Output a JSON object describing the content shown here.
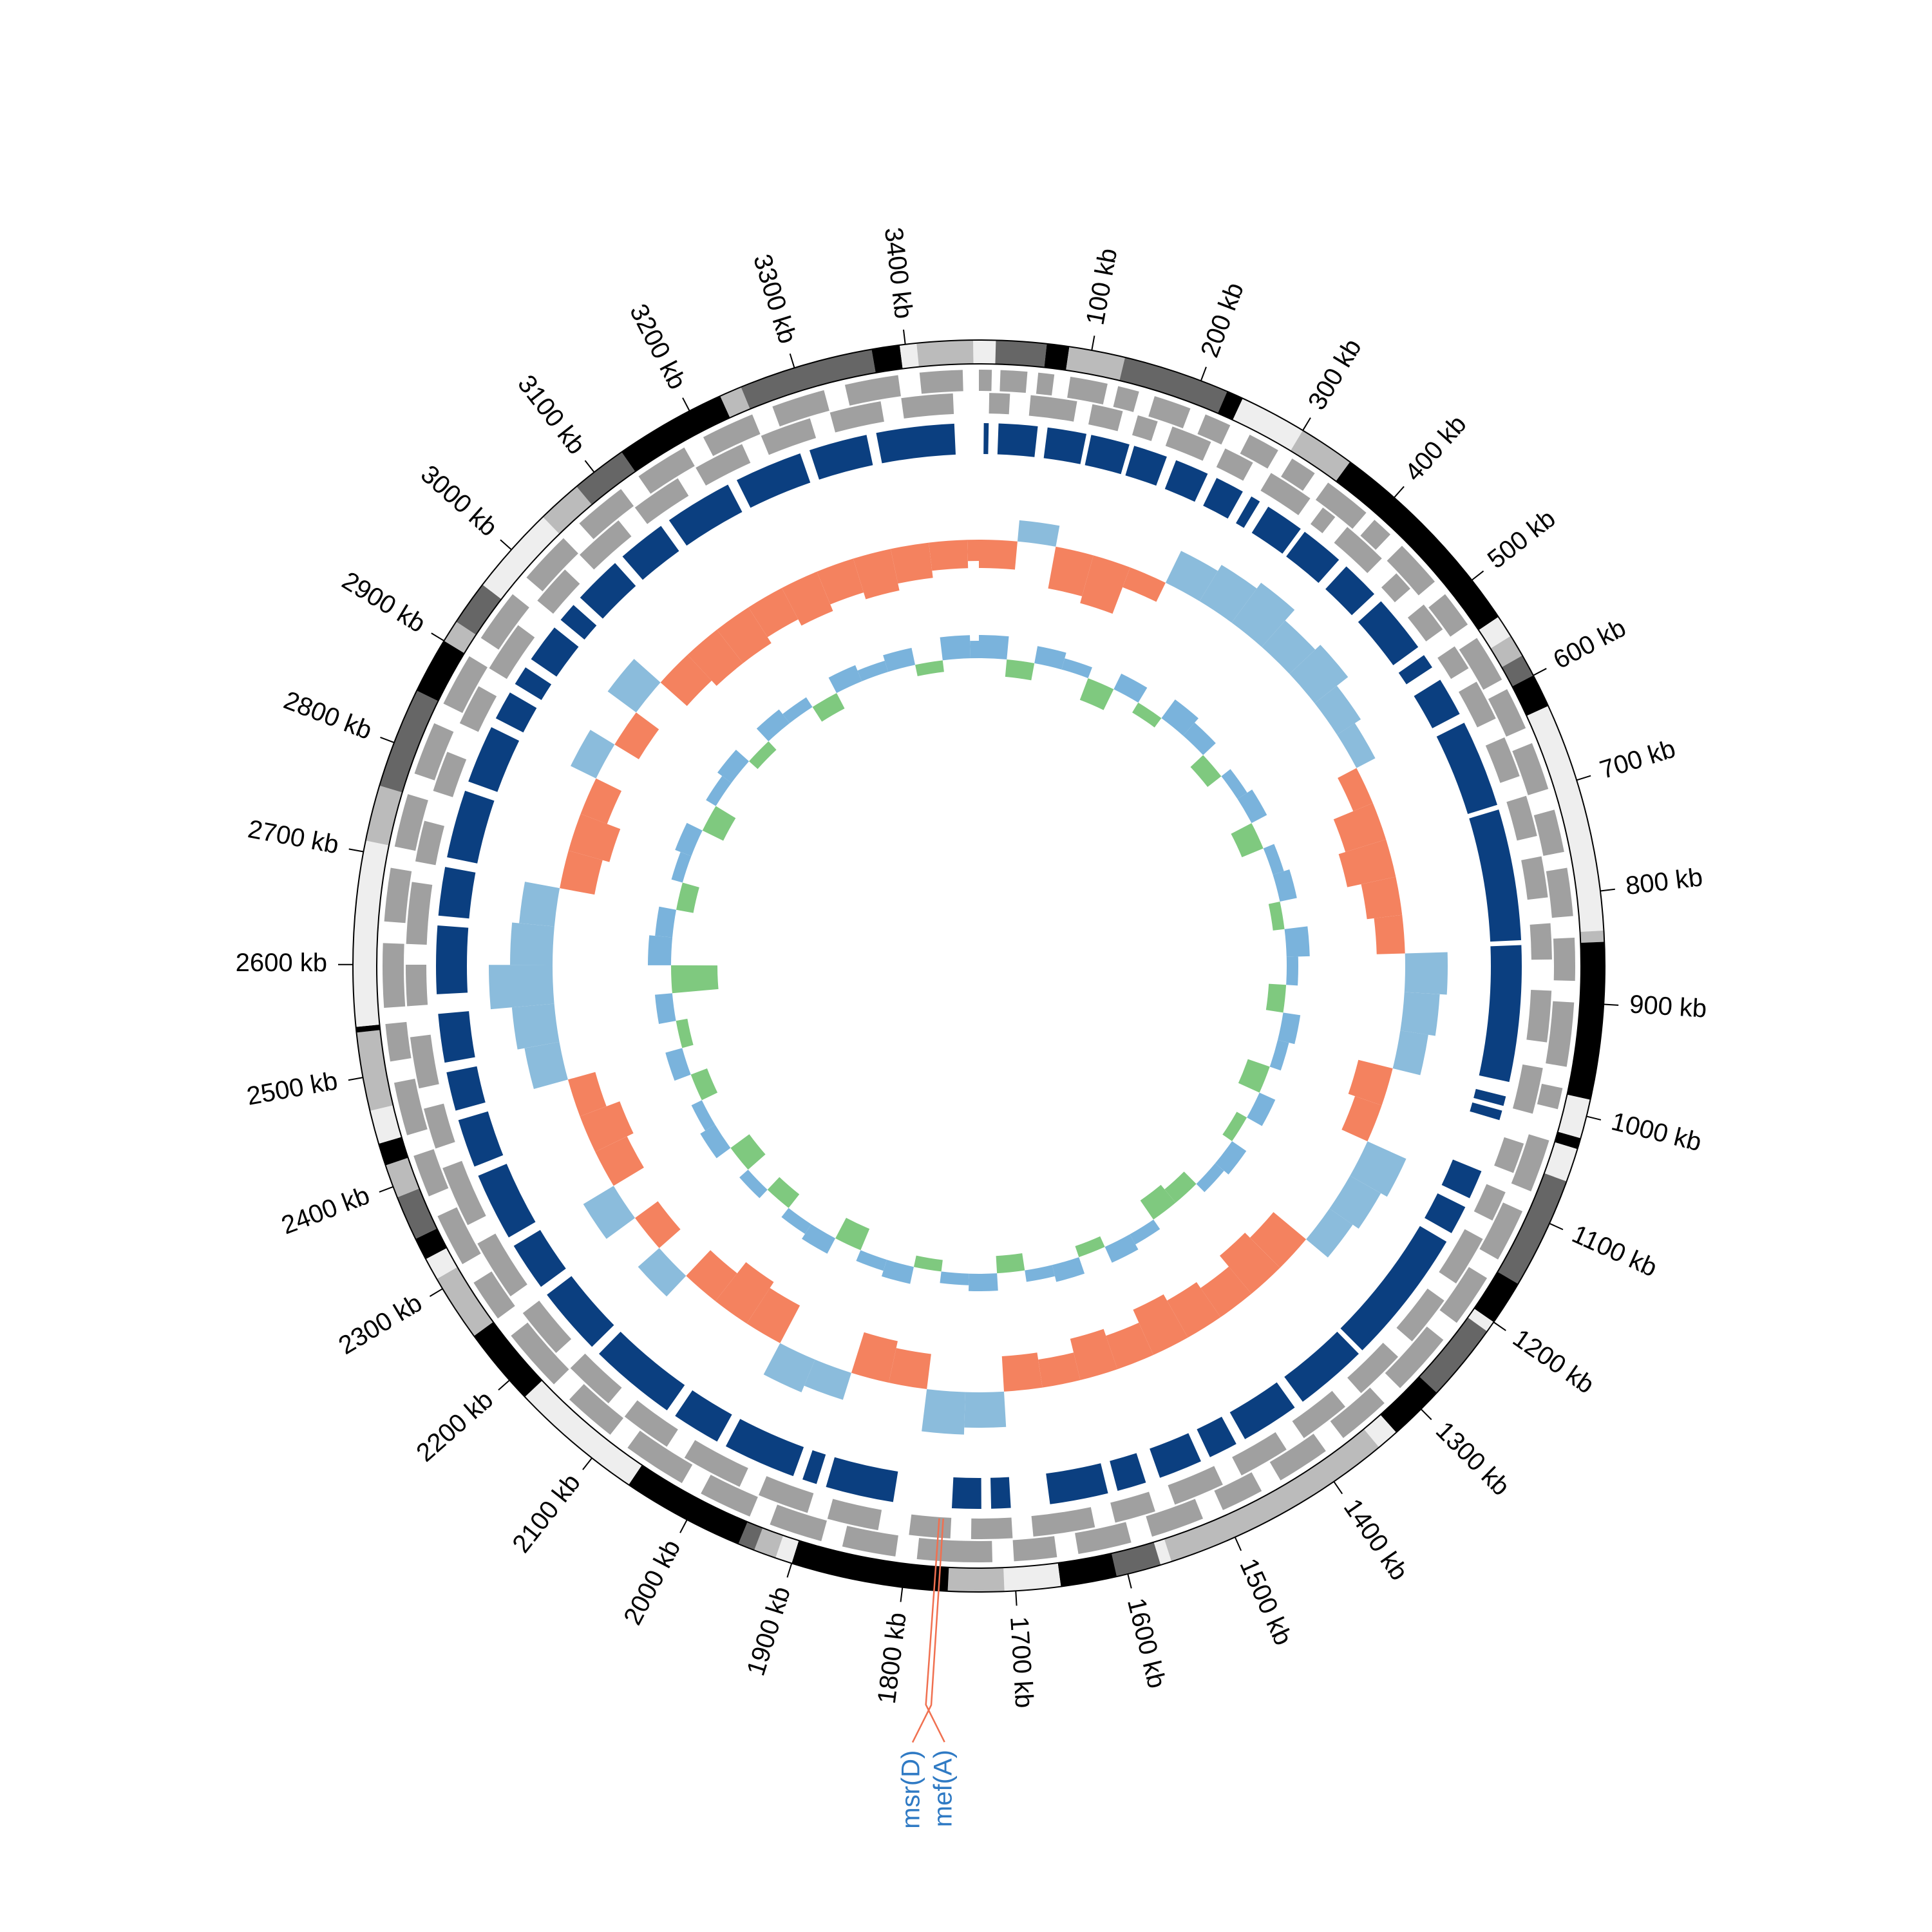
{
  "chart_data": {
    "type": "circular",
    "xlim": [
      0,
      3465
    ],
    "xticks": [
      {
        "value": 100,
        "label": "100 kb"
      },
      {
        "value": 200,
        "label": "200 kb"
      },
      {
        "value": 300,
        "label": "300 kb"
      },
      {
        "value": 400,
        "label": "400 kb"
      },
      {
        "value": 500,
        "label": "500 kb"
      },
      {
        "value": 600,
        "label": "600 kb"
      },
      {
        "value": 700,
        "label": "700 kb"
      },
      {
        "value": 800,
        "label": "800 kb"
      },
      {
        "value": 900,
        "label": "900 kb"
      },
      {
        "value": 1000,
        "label": "1000 kb"
      },
      {
        "value": 1100,
        "label": "1100 kb"
      },
      {
        "value": 1200,
        "label": "1200 kb"
      },
      {
        "value": 1300,
        "label": "1300 kb"
      },
      {
        "value": 1400,
        "label": "1400 kb"
      },
      {
        "value": 1500,
        "label": "1500 kb"
      },
      {
        "value": 1600,
        "label": "1600 kb"
      },
      {
        "value": 1700,
        "label": "1700 kb"
      },
      {
        "value": 1800,
        "label": "1800 kb"
      },
      {
        "value": 1900,
        "label": "1900 kb"
      },
      {
        "value": 2000,
        "label": "2000 kb"
      },
      {
        "value": 2100,
        "label": "2100 kb"
      },
      {
        "value": 2200,
        "label": "2200 kb"
      },
      {
        "value": 2300,
        "label": "2300 kb"
      },
      {
        "value": 2400,
        "label": "2400 kb"
      },
      {
        "value": 2500,
        "label": "2500 kb"
      },
      {
        "value": 2600,
        "label": "2600 kb"
      },
      {
        "value": 2700,
        "label": "2700 kb"
      },
      {
        "value": 2800,
        "label": "2800 kb"
      },
      {
        "value": 2900,
        "label": "2900 kb"
      },
      {
        "value": 3000,
        "label": "3000 kb"
      },
      {
        "value": 3100,
        "label": "3100 kb"
      },
      {
        "value": 3200,
        "label": "3200 kb"
      },
      {
        "value": 3300,
        "label": "3300 kb"
      },
      {
        "value": 3400,
        "label": "3400 kb"
      }
    ],
    "contigs": [
      [
        0,
        15,
        "#eeeeee"
      ],
      [
        15,
        60,
        "#666666"
      ],
      [
        60,
        80,
        "#000000"
      ],
      [
        80,
        130,
        "#bbbbbb"
      ],
      [
        130,
        225,
        "#666666"
      ],
      [
        225,
        240,
        "#000000"
      ],
      [
        240,
        300,
        "#eeeeee"
      ],
      [
        300,
        350,
        "#bbbbbb"
      ],
      [
        350,
        540,
        "#000000"
      ],
      [
        540,
        560,
        "#eeeeee"
      ],
      [
        560,
        580,
        "#bbbbbb"
      ],
      [
        580,
        600,
        "#666666"
      ],
      [
        600,
        630,
        "#000000"
      ],
      [
        630,
        835,
        "#eeeeee"
      ],
      [
        835,
        845,
        "#bbbbbb"
      ],
      [
        845,
        985,
        "#000000"
      ],
      [
        985,
        1020,
        "#eeeeee"
      ],
      [
        1020,
        1030,
        "#000000"
      ],
      [
        1030,
        1060,
        "#eeeeee"
      ],
      [
        1060,
        1160,
        "#666666"
      ],
      [
        1160,
        1200,
        "#000000"
      ],
      [
        1200,
        1210,
        "#eeeeee"
      ],
      [
        1210,
        1280,
        "#666666"
      ],
      [
        1280,
        1330,
        "#000000"
      ],
      [
        1330,
        1350,
        "#eeeeee"
      ],
      [
        1350,
        1560,
        "#bbbbbb"
      ],
      [
        1560,
        1570,
        "#eeeeee"
      ],
      [
        1570,
        1610,
        "#666666"
      ],
      [
        1610,
        1660,
        "#000000"
      ],
      [
        1660,
        1710,
        "#eeeeee"
      ],
      [
        1710,
        1760,
        "#bbbbbb"
      ],
      [
        1760,
        1900,
        "#000000"
      ],
      [
        1900,
        1915,
        "#eeeeee"
      ],
      [
        1915,
        1935,
        "#bbbbbb"
      ],
      [
        1935,
        1950,
        "#666666"
      ],
      [
        1950,
        2060,
        "#000000"
      ],
      [
        2060,
        2180,
        "#eeeeee"
      ],
      [
        2180,
        2250,
        "#000000"
      ],
      [
        2250,
        2310,
        "#bbbbbb"
      ],
      [
        2310,
        2330,
        "#eeeeee"
      ],
      [
        2330,
        2350,
        "#000000"
      ],
      [
        2350,
        2390,
        "#666666"
      ],
      [
        2390,
        2420,
        "#bbbbbb"
      ],
      [
        2420,
        2440,
        "#000000"
      ],
      [
        2440,
        2470,
        "#eeeeee"
      ],
      [
        2470,
        2540,
        "#bbbbbb"
      ],
      [
        2540,
        2545,
        "#000000"
      ],
      [
        2545,
        2710,
        "#eeeeee"
      ],
      [
        2710,
        2760,
        "#bbbbbb"
      ],
      [
        2760,
        2850,
        "#666666"
      ],
      [
        2850,
        2900,
        "#000000"
      ],
      [
        2900,
        2920,
        "#bbbbbb"
      ],
      [
        2920,
        2960,
        "#666666"
      ],
      [
        2960,
        3040,
        "#eeeeee"
      ],
      [
        3040,
        3080,
        "#bbbbbb"
      ],
      [
        3080,
        3130,
        "#666666"
      ],
      [
        3130,
        3230,
        "#000000"
      ],
      [
        3230,
        3250,
        "#bbbbbb"
      ],
      [
        3250,
        3370,
        "#666666"
      ],
      [
        3370,
        3395,
        "#000000"
      ],
      [
        3395,
        3410,
        "#eeeeee"
      ],
      [
        3410,
        3460,
        "#bbbbbb"
      ],
      [
        3460,
        3465,
        "#eeeeee"
      ]
    ],
    "cds_forward": {
      "color": "#a0a0a0",
      "segments": [
        [
          0,
          12
        ],
        [
          20,
          45
        ],
        [
          55,
          70
        ],
        [
          85,
          120
        ],
        [
          130,
          150
        ],
        [
          165,
          200
        ],
        [
          215,
          240
        ],
        [
          260,
          290
        ],
        [
          305,
          330
        ],
        [
          345,
          390
        ],
        [
          400,
          420
        ],
        [
          435,
          480
        ],
        [
          495,
          530
        ],
        [
          545,
          590
        ],
        [
          600,
          640
        ],
        [
          655,
          700
        ],
        [
          720,
          760
        ],
        [
          775,
          820
        ],
        [
          840,
          880
        ],
        [
          900,
          960
        ],
        [
          980,
          1000
        ],
        [
          1030,
          1080
        ],
        [
          1100,
          1150
        ],
        [
          1170,
          1220
        ],
        [
          1240,
          1300
        ],
        [
          1320,
          1370
        ],
        [
          1390,
          1440
        ],
        [
          1460,
          1500
        ],
        [
          1520,
          1570
        ],
        [
          1590,
          1640
        ],
        [
          1660,
          1700
        ],
        [
          1720,
          1790
        ],
        [
          1810,
          1860
        ],
        [
          1880,
          1930
        ],
        [
          1950,
          2000
        ],
        [
          2020,
          2080
        ],
        [
          2100,
          2150
        ],
        [
          2170,
          2230
        ],
        [
          2250,
          2290
        ],
        [
          2310,
          2360
        ],
        [
          2380,
          2420
        ],
        [
          2440,
          2490
        ],
        [
          2510,
          2545
        ],
        [
          2560,
          2620
        ],
        [
          2640,
          2690
        ],
        [
          2710,
          2760
        ],
        [
          2780,
          2830
        ],
        [
          2850,
          2900
        ],
        [
          2920,
          2970
        ],
        [
          2990,
          3040
        ],
        [
          3060,
          3110
        ],
        [
          3130,
          3180
        ],
        [
          3200,
          3250
        ],
        [
          3270,
          3320
        ],
        [
          3340,
          3390
        ],
        [
          3410,
          3450
        ]
      ]
    },
    "cds_reverse": {
      "color": "#a0a0a0",
      "segments": [
        [
          10,
          30
        ],
        [
          50,
          95
        ],
        [
          110,
          140
        ],
        [
          155,
          175
        ],
        [
          190,
          230
        ],
        [
          245,
          275
        ],
        [
          295,
          340
        ],
        [
          355,
          370
        ],
        [
          385,
          430
        ],
        [
          450,
          470
        ],
        [
          490,
          520
        ],
        [
          540,
          565
        ],
        [
          580,
          620
        ],
        [
          640,
          680
        ],
        [
          700,
          740
        ],
        [
          760,
          800
        ],
        [
          825,
          860
        ],
        [
          890,
          940
        ],
        [
          965,
          1010
        ],
        [
          1040,
          1070
        ],
        [
          1090,
          1120
        ],
        [
          1140,
          1190
        ],
        [
          1210,
          1260
        ],
        [
          1280,
          1330
        ],
        [
          1350,
          1400
        ],
        [
          1420,
          1470
        ],
        [
          1490,
          1540
        ],
        [
          1560,
          1600
        ],
        [
          1620,
          1680
        ],
        [
          1700,
          1740
        ],
        [
          1760,
          1800
        ],
        [
          1830,
          1880
        ],
        [
          1900,
          1950
        ],
        [
          1970,
          2030
        ],
        [
          2050,
          2100
        ],
        [
          2120,
          2170
        ],
        [
          2190,
          2240
        ],
        [
          2260,
          2320
        ],
        [
          2340,
          2400
        ],
        [
          2420,
          2460
        ],
        [
          2480,
          2530
        ],
        [
          2560,
          2600
        ],
        [
          2620,
          2680
        ],
        [
          2700,
          2740
        ],
        [
          2770,
          2810
        ],
        [
          2840,
          2880
        ],
        [
          2900,
          2950
        ],
        [
          2980,
          3020
        ],
        [
          3040,
          3090
        ],
        [
          3110,
          3160
        ],
        [
          3180,
          3230
        ],
        [
          3250,
          3300
        ],
        [
          3320,
          3370
        ],
        [
          3390,
          3440
        ]
      ]
    },
    "blocks": {
      "color": "#0b3f80",
      "segments": [
        [
          5,
          10
        ],
        [
          20,
          60
        ],
        [
          70,
          110
        ],
        [
          115,
          155
        ],
        [
          160,
          195
        ],
        [
          205,
          240
        ],
        [
          250,
          280
        ],
        [
          290,
          300
        ],
        [
          310,
          350
        ],
        [
          355,
          400
        ],
        [
          410,
          450
        ],
        [
          460,
          520
        ],
        [
          530,
          545
        ],
        [
          560,
          600
        ],
        [
          610,
          700
        ],
        [
          705,
          840
        ],
        [
          845,
          985
        ],
        [
          1000,
          1010
        ],
        [
          1015,
          1025
        ],
        [
          1080,
          1110
        ],
        [
          1120,
          1150
        ],
        [
          1160,
          1300
        ],
        [
          1305,
          1380
        ],
        [
          1390,
          1450
        ],
        [
          1460,
          1490
        ],
        [
          1500,
          1545
        ],
        [
          1560,
          1590
        ],
        [
          1600,
          1660
        ],
        [
          1700,
          1720
        ],
        [
          1730,
          1760
        ],
        [
          1820,
          1890
        ],
        [
          1900,
          1915
        ],
        [
          1925,
          2000
        ],
        [
          2010,
          2060
        ],
        [
          2070,
          2160
        ],
        [
          2170,
          2240
        ],
        [
          2250,
          2300
        ],
        [
          2310,
          2380
        ],
        [
          2390,
          2440
        ],
        [
          2450,
          2490
        ],
        [
          2500,
          2550
        ],
        [
          2570,
          2640
        ],
        [
          2650,
          2700
        ],
        [
          2710,
          2780
        ],
        [
          2790,
          2850
        ],
        [
          2860,
          2890
        ],
        [
          2900,
          2920
        ],
        [
          2930,
          2970
        ],
        [
          2980,
          3000
        ],
        [
          3010,
          3060
        ],
        [
          3070,
          3120
        ],
        [
          3130,
          3200
        ],
        [
          3210,
          3280
        ],
        [
          3290,
          3350
        ],
        [
          3360,
          3440
        ]
      ]
    },
    "x": [
      0,
      50,
      100,
      150,
      200,
      250,
      300,
      350,
      400,
      450,
      500,
      550,
      600,
      650,
      700,
      750,
      800,
      850,
      900,
      950,
      1000,
      1050,
      1100,
      1150,
      1200,
      1250,
      1300,
      1350,
      1400,
      1450,
      1500,
      1550,
      1600,
      1650,
      1700,
      1750,
      1800,
      1850,
      1900,
      1950,
      2000,
      2050,
      2100,
      2150,
      2200,
      2250,
      2300,
      2350,
      2400,
      2450,
      2500,
      2550,
      2600,
      2650,
      2700,
      2750,
      2800,
      2850,
      2900,
      2950,
      3000,
      3050,
      3100,
      3150,
      3200,
      3250,
      3300,
      3350,
      3400,
      3450
    ],
    "ylim": [
      -1,
      1
    ],
    "series": [
      {
        "color_pos": "#8bbcdc",
        "color_neg": "#f4825f",
        "values": [
          -0.4,
          0.3,
          -0.6,
          -0.7,
          -0.3,
          0.5,
          0.6,
          0.7,
          0.5,
          0.6,
          0.4,
          0.3,
          -0.3,
          -0.6,
          -0.7,
          -0.5,
          -0.4,
          0.6,
          0.5,
          0.4,
          -0.5,
          -0.4,
          0.6,
          0.5,
          0.4,
          -0.6,
          -0.7,
          -0.5,
          -0.6,
          -0.7,
          -0.5,
          -0.6,
          -0.4,
          -0.5,
          0.5,
          0.6,
          -0.5,
          -0.6,
          0.4,
          0.5,
          -0.6,
          -0.7,
          -0.5,
          0.4,
          -0.4,
          0.5,
          -0.5,
          -0.6,
          -0.4,
          0.5,
          0.6,
          0.9,
          0.6,
          0.5,
          -0.5,
          -0.6,
          -0.4,
          0.4,
          -0.4,
          0.5,
          -0.5,
          -0.6,
          -0.6,
          -0.5,
          -0.6,
          -0.5,
          -0.6,
          -0.5,
          -0.4,
          -0.3
        ]
      },
      {
        "color_pos": "#7ab3dc",
        "color_neg": "#7fc97f",
        "values": [
          0.4,
          -0.3,
          0.3,
          0.2,
          -0.4,
          0.3,
          -0.2,
          0.4,
          0.3,
          -0.3,
          0.2,
          0.3,
          -0.4,
          0.2,
          0.3,
          -0.2,
          0.4,
          0.2,
          -0.3,
          0.3,
          0.2,
          -0.4,
          0.3,
          -0.2,
          0.3,
          0.2,
          -0.3,
          -0.4,
          0.2,
          0.3,
          -0.2,
          0.3,
          0.2,
          -0.3,
          0.3,
          0.2,
          -0.2,
          0.3,
          0.2,
          -0.4,
          0.3,
          0.2,
          -0.3,
          0.2,
          -0.4,
          0.3,
          0.2,
          -0.3,
          0.3,
          -0.2,
          0.3,
          -0.8,
          0.4,
          0.3,
          -0.3,
          0.2,
          0.3,
          -0.4,
          0.2,
          0.3,
          -0.2,
          0.3,
          0.2,
          -0.3,
          0.3,
          0.2,
          0.3,
          -0.2,
          0.4,
          0.3
        ]
      }
    ],
    "annotations": [
      {
        "label": "msr(D)",
        "position": 1768,
        "color": "#2f7ac4",
        "line_color": "#f07050"
      },
      {
        "label": "mef(A)",
        "position": 1772,
        "color": "#2f7ac4",
        "line_color": "#f07050"
      }
    ]
  }
}
